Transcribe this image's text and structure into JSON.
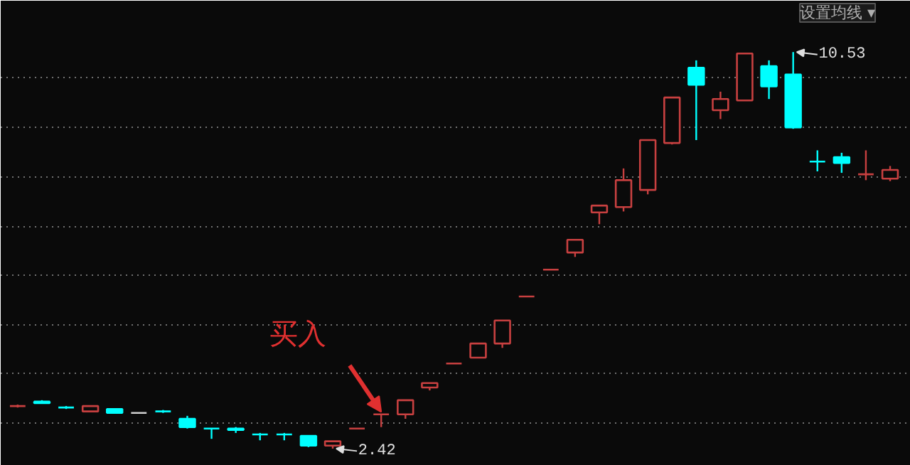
{
  "chart_data": {
    "type": "candlestick",
    "categories": [
      null,
      null,
      null,
      null,
      null,
      null,
      null,
      null,
      null,
      null,
      null,
      null,
      null,
      null,
      null,
      null,
      null,
      null,
      null,
      null,
      null,
      null,
      null,
      null,
      null,
      null,
      null,
      null,
      null,
      null,
      null,
      null,
      null,
      null,
      null,
      null,
      null
    ],
    "ohlc": [
      [
        3.29,
        3.32,
        3.26,
        3.29
      ],
      [
        3.38,
        3.41,
        3.35,
        3.35
      ],
      [
        3.26,
        3.29,
        3.23,
        3.26
      ],
      [
        3.18,
        3.29,
        3.18,
        3.29
      ],
      [
        3.23,
        3.23,
        3.15,
        3.15
      ],
      [
        3.15,
        3.15,
        3.15,
        3.15
      ],
      [
        3.18,
        3.21,
        3.15,
        3.18
      ],
      [
        3.03,
        3.09,
        2.83,
        2.86
      ],
      [
        2.83,
        2.83,
        2.62,
        2.83
      ],
      [
        2.83,
        2.86,
        2.74,
        2.8
      ],
      [
        2.71,
        2.74,
        2.59,
        2.71
      ],
      [
        2.71,
        2.74,
        2.59,
        2.71
      ],
      [
        2.68,
        2.68,
        2.45,
        2.48
      ],
      [
        2.48,
        2.57,
        2.42,
        2.57
      ],
      [
        2.83,
        2.83,
        2.83,
        2.83
      ],
      [
        3.12,
        3.12,
        2.86,
        3.12
      ],
      [
        3.12,
        3.41,
        3.03,
        3.41
      ],
      [
        3.67,
        3.76,
        3.61,
        3.76
      ],
      [
        4.16,
        4.16,
        4.16,
        4.16
      ],
      [
        4.28,
        4.57,
        4.28,
        4.57
      ],
      [
        4.57,
        5.04,
        4.48,
        5.04
      ],
      [
        5.53,
        5.53,
        5.53,
        5.53
      ],
      [
        6.08,
        6.08,
        6.08,
        6.08
      ],
      [
        6.43,
        6.69,
        6.34,
        6.69
      ],
      [
        7.25,
        7.39,
        7.01,
        7.39
      ],
      [
        7.36,
        8.15,
        7.27,
        7.91
      ],
      [
        7.71,
        8.73,
        7.62,
        8.73
      ],
      [
        8.67,
        9.6,
        8.64,
        9.6
      ],
      [
        10.21,
        10.36,
        8.73,
        9.86
      ],
      [
        9.34,
        9.72,
        9.16,
        9.57
      ],
      [
        9.54,
        10.5,
        9.54,
        10.5
      ],
      [
        10.24,
        10.36,
        9.57,
        9.83
      ],
      [
        10.07,
        10.53,
        8.96,
        8.99
      ],
      [
        8.29,
        8.52,
        8.09,
        8.29
      ],
      [
        8.38,
        8.47,
        8.06,
        8.26
      ],
      [
        8.03,
        8.52,
        7.91,
        8.03
      ],
      [
        7.94,
        8.2,
        7.89,
        8.12
      ]
    ],
    "colors": [
      "#c84040",
      "#00ffff",
      "#00ffff",
      "#c84040",
      "#00ffff",
      "#d0d0d0",
      "#00ffff",
      "#00ffff",
      "#00ffff",
      "#00ffff",
      "#00ffff",
      "#00ffff",
      "#00ffff",
      "#c84040",
      "#c84040",
      "#c84040",
      "#c84040",
      "#c84040",
      "#c84040",
      "#c84040",
      "#c84040",
      "#c84040",
      "#c84040",
      "#c84040",
      "#c84040",
      "#c84040",
      "#c84040",
      "#c84040",
      "#00ffff",
      "#c84040",
      "#c84040",
      "#00ffff",
      "#00ffff",
      "#00ffff",
      "#00ffff",
      "#c84040",
      "#c84040"
    ],
    "ylim": [
      2.07,
      11.58
    ],
    "yticks": [
      {
        "value": 2.94,
        "label": null
      },
      {
        "value": 3.96,
        "label": null
      },
      {
        "value": 4.95,
        "label": null
      },
      {
        "value": 5.98,
        "label": null
      },
      {
        "value": 6.95,
        "label": null
      },
      {
        "value": 7.97,
        "label": null
      },
      {
        "value": 8.99,
        "label": null
      },
      {
        "value": 10.01,
        "label": null
      }
    ],
    "grid": "y",
    "tick_labels": false,
    "annotations": [
      "2.42",
      "10.53",
      "买入",
      "设置均线 ▾"
    ]
  }
}
